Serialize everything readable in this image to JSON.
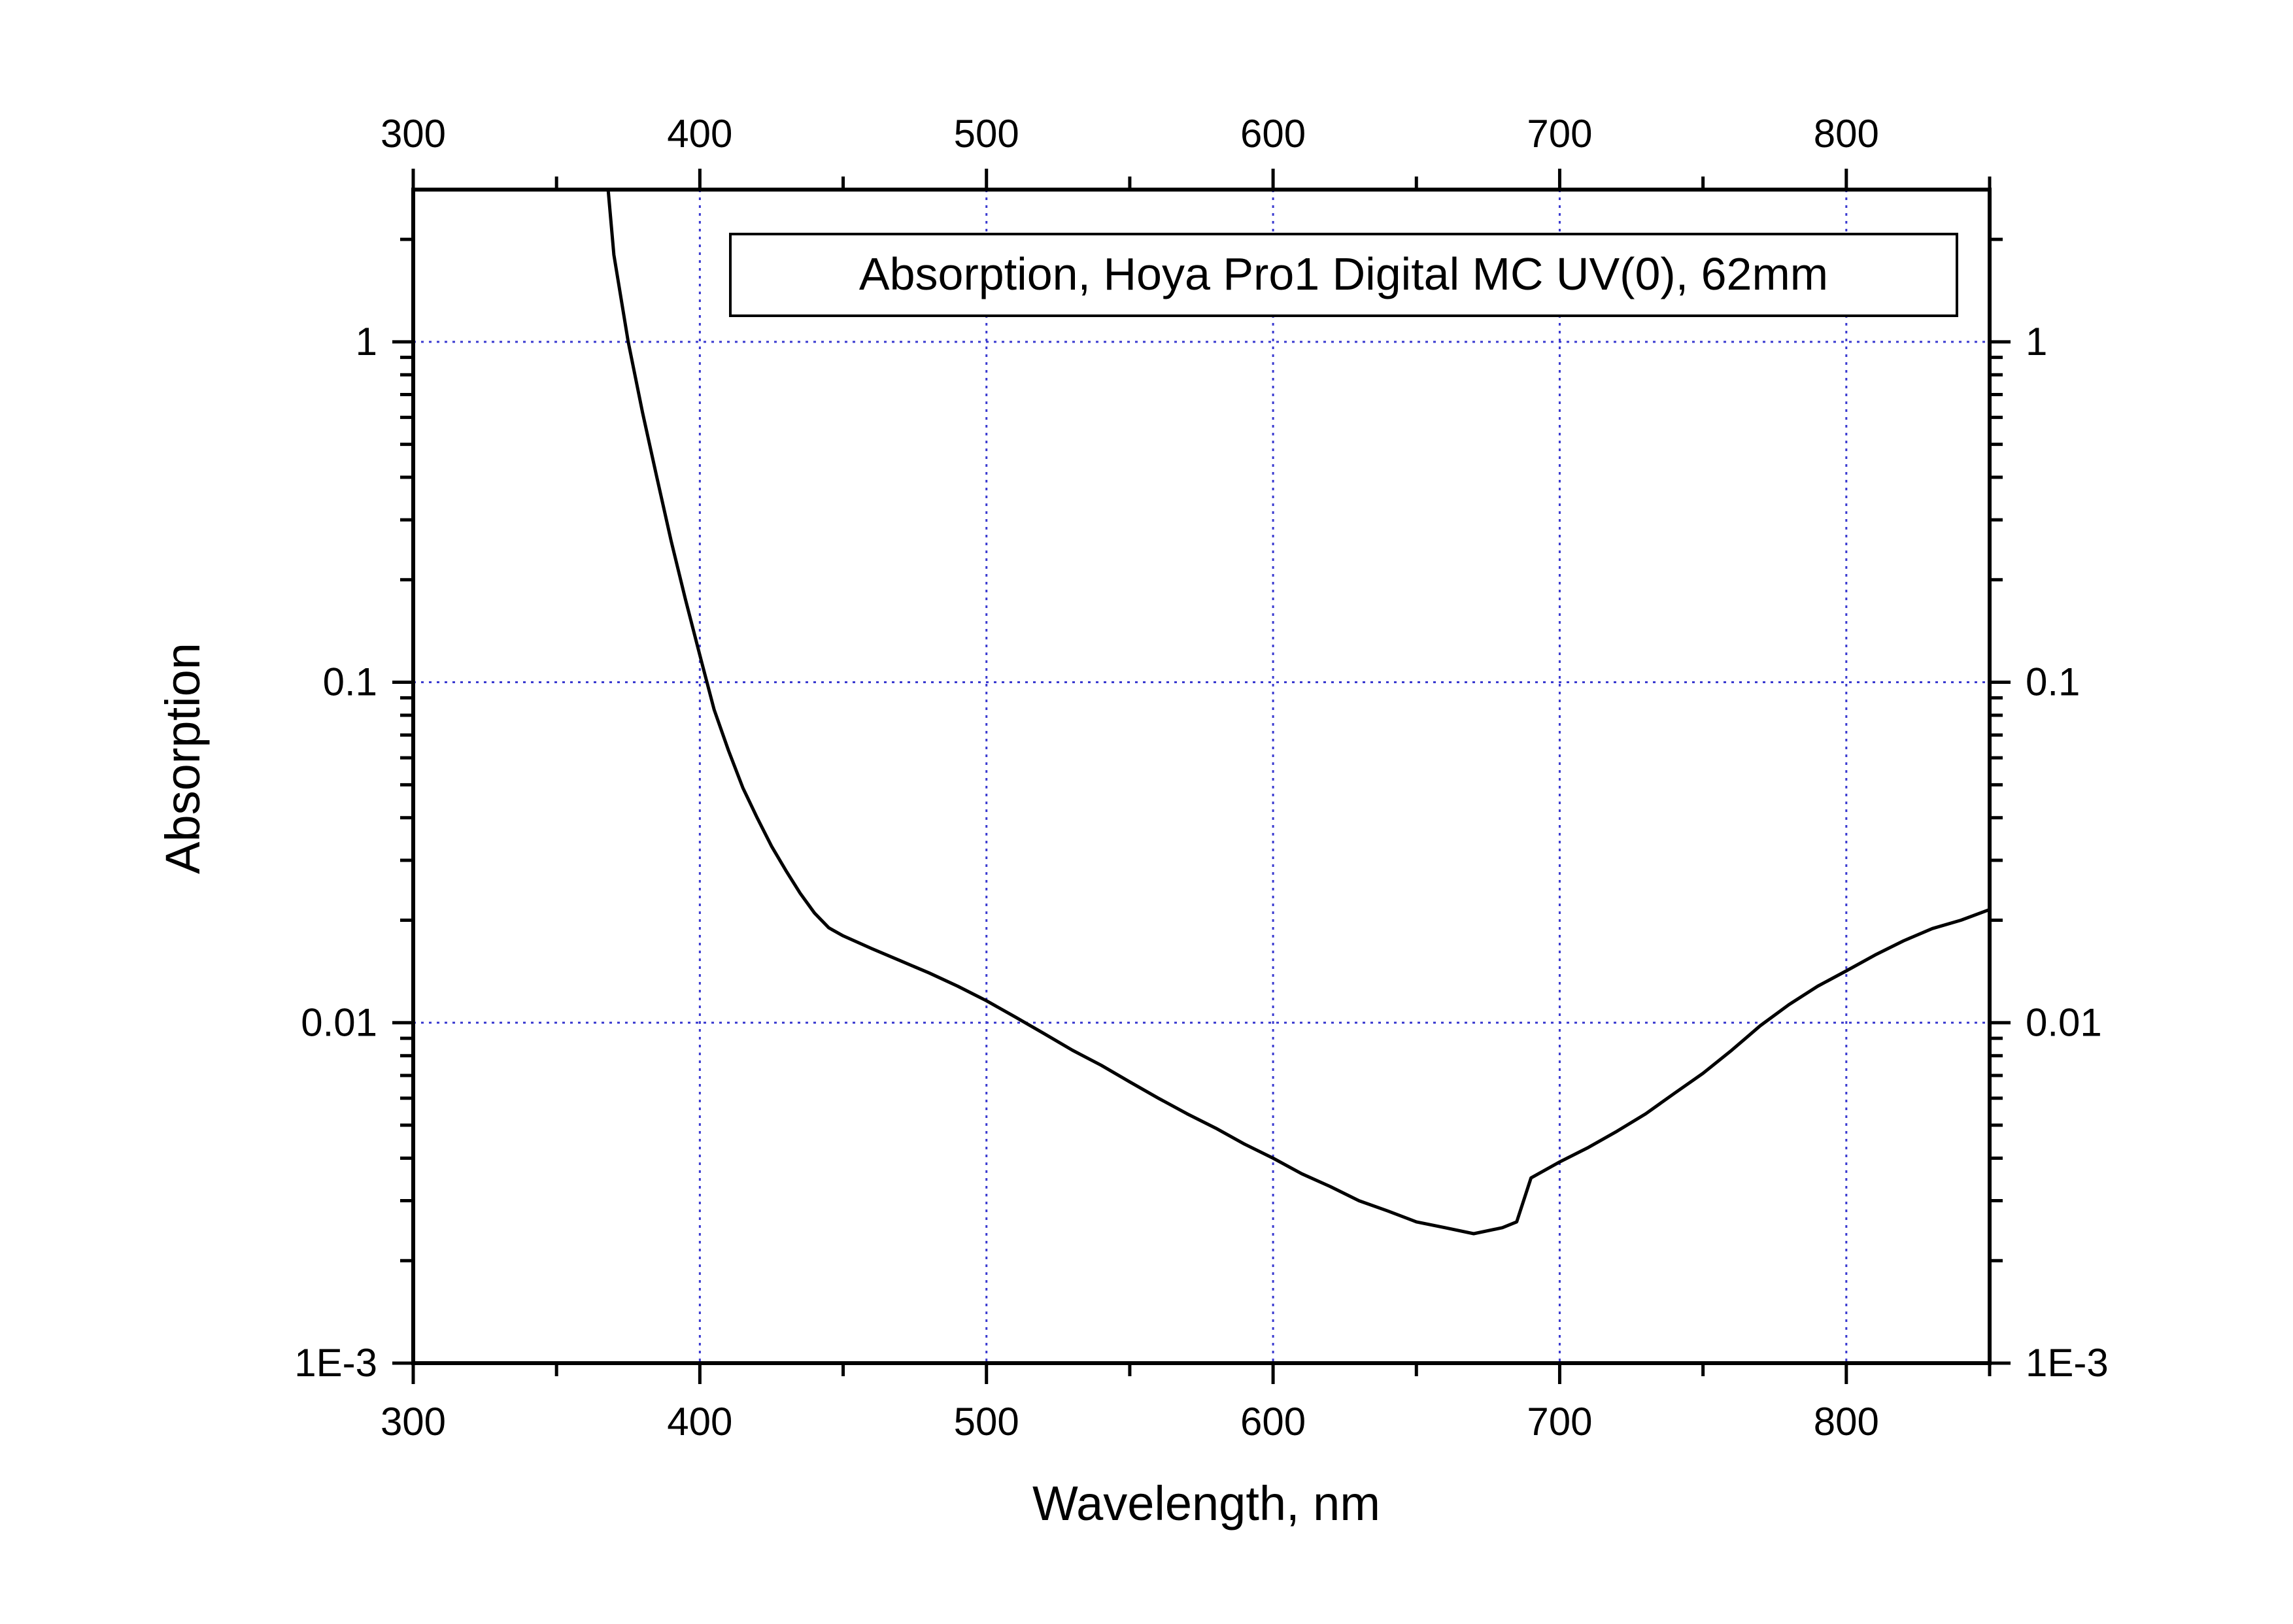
{
  "chart_data": {
    "type": "line",
    "title": "",
    "xlabel": "Wavelength, nm",
    "ylabel": "Absorption",
    "xlim": [
      300,
      850
    ],
    "ylim": [
      0.001,
      2.8
    ],
    "y_scale": "log",
    "x_ticks": [
      300,
      400,
      500,
      600,
      700,
      800
    ],
    "y_ticks": [
      1,
      0.1,
      0.01,
      0.001
    ],
    "x_tick_labels": [
      "300",
      "400",
      "500",
      "600",
      "700",
      "800"
    ],
    "y_tick_labels": [
      "1",
      "0.1",
      "0.01",
      "1E-3"
    ],
    "top_axis_labels": [
      "300",
      "400",
      "500",
      "600",
      "700",
      "800"
    ],
    "right_axis_labels": [
      "1",
      "0.1",
      "0.01",
      "1E-3"
    ],
    "grid": true,
    "grid_color": "#3a3ad0",
    "line_color": "#000000",
    "legend": {
      "text": "Absorption, Hoya Pro1 Digital MC UV(0), 62mm",
      "placement": "top-right"
    },
    "series": [
      {
        "x": [
          368,
          370,
          375,
          380,
          385,
          390,
          395,
          400,
          405,
          410,
          415,
          420,
          425,
          430,
          435,
          440,
          445,
          450,
          460,
          470,
          480,
          490,
          500,
          510,
          520,
          530,
          540,
          550,
          560,
          570,
          580,
          590,
          600,
          610,
          620,
          630,
          640,
          650,
          660,
          670,
          680,
          685,
          690,
          700,
          710,
          720,
          730,
          740,
          750,
          760,
          770,
          780,
          790,
          800,
          810,
          820,
          830,
          840,
          850
        ],
        "y": [
          2.8,
          1.8,
          1.0,
          0.62,
          0.4,
          0.26,
          0.175,
          0.12,
          0.083,
          0.063,
          0.049,
          0.04,
          0.033,
          0.028,
          0.024,
          0.021,
          0.019,
          0.018,
          0.0165,
          0.0152,
          0.014,
          0.0128,
          0.0116,
          0.0104,
          0.0093,
          0.0083,
          0.0075,
          0.0067,
          0.006,
          0.0054,
          0.0049,
          0.0044,
          0.004,
          0.0036,
          0.0033,
          0.003,
          0.0028,
          0.0026,
          0.0025,
          0.0024,
          0.0025,
          0.0026,
          0.0035,
          0.0039,
          0.0043,
          0.0048,
          0.0054,
          0.0062,
          0.0071,
          0.0083,
          0.0098,
          0.0113,
          0.0128,
          0.0142,
          0.0158,
          0.0174,
          0.0189,
          0.02,
          0.0215
        ]
      }
    ]
  }
}
